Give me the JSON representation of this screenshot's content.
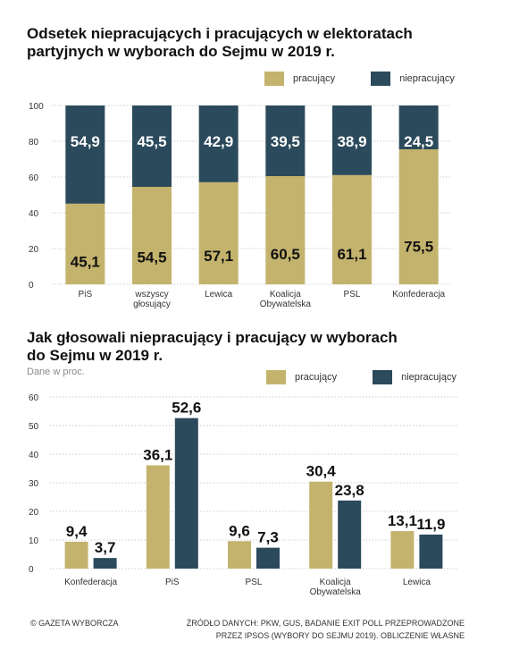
{
  "colors": {
    "pracujacy": "#c4b36d",
    "niepracujacy": "#2b4a5c",
    "grid": "#9a9a9a",
    "text": "#333333"
  },
  "legend": {
    "pracujacy": "pracujący",
    "niepracujacy": "niepracujący"
  },
  "footer": {
    "brand": "© GAZETA WYBORCZA",
    "source_line1": "ŹRÓDŁO DANYCH: PKW, GUS, BADANIE EXIT POLL PRZEPROWADZONE",
    "source_line2": "PRZEZ IPSOS (WYBORY DO SEJMU 2019). OBLICZENIE WŁASNE"
  },
  "chart_data": [
    {
      "type": "bar",
      "stacked": true,
      "title_line1": "Odsetek niepracujących i pracujących w elektoratach",
      "title_line2": "partyjnych w wyborach do Sejmu w 2019 r.",
      "categories": [
        [
          "PiS"
        ],
        [
          "wszyscy",
          "głosujący"
        ],
        [
          "Lewica"
        ],
        [
          "Koalicja",
          "Obywatelska"
        ],
        [
          "PSL"
        ],
        [
          "Konfederacja"
        ]
      ],
      "series": [
        {
          "name": "pracujący",
          "values": [
            45.1,
            54.5,
            57.1,
            60.5,
            61.1,
            75.5
          ],
          "labels": [
            "45,1",
            "54,5",
            "57,1",
            "60,5",
            "61,1",
            "75,5"
          ]
        },
        {
          "name": "niepracujący",
          "values": [
            54.9,
            45.5,
            42.9,
            39.5,
            38.9,
            24.5
          ],
          "labels": [
            "54,9",
            "45,5",
            "42,9",
            "39,5",
            "38,9",
            "24,5"
          ]
        }
      ],
      "ylim": [
        0,
        100
      ],
      "yticks": [
        0,
        20,
        40,
        60,
        80,
        100
      ],
      "grid": true,
      "legend_position": "top-right"
    },
    {
      "type": "bar",
      "stacked": false,
      "title_line1": "Jak głosowali niepracujący i pracujący w wyborach",
      "title_line2": "do Sejmu w 2019 r.",
      "subtitle": "Dane w proc.",
      "categories": [
        [
          "Konfederacja"
        ],
        [
          "PiS"
        ],
        [
          "PSL"
        ],
        [
          "Koalicja",
          "Obywatelska"
        ],
        [
          "Lewica"
        ]
      ],
      "series": [
        {
          "name": "pracujący",
          "values": [
            9.4,
            36.1,
            9.6,
            30.4,
            13.1
          ],
          "labels": [
            "9,4",
            "36,1",
            "9,6",
            "30,4",
            "13,1"
          ]
        },
        {
          "name": "niepracujący",
          "values": [
            3.7,
            52.6,
            7.3,
            23.8,
            11.9
          ],
          "labels": [
            "3,7",
            "52,6",
            "7,3",
            "23,8",
            "11,9"
          ]
        }
      ],
      "ylim": [
        0,
        60
      ],
      "yticks": [
        0,
        10,
        20,
        30,
        40,
        50,
        60
      ],
      "grid": true,
      "legend_position": "top-right"
    }
  ]
}
